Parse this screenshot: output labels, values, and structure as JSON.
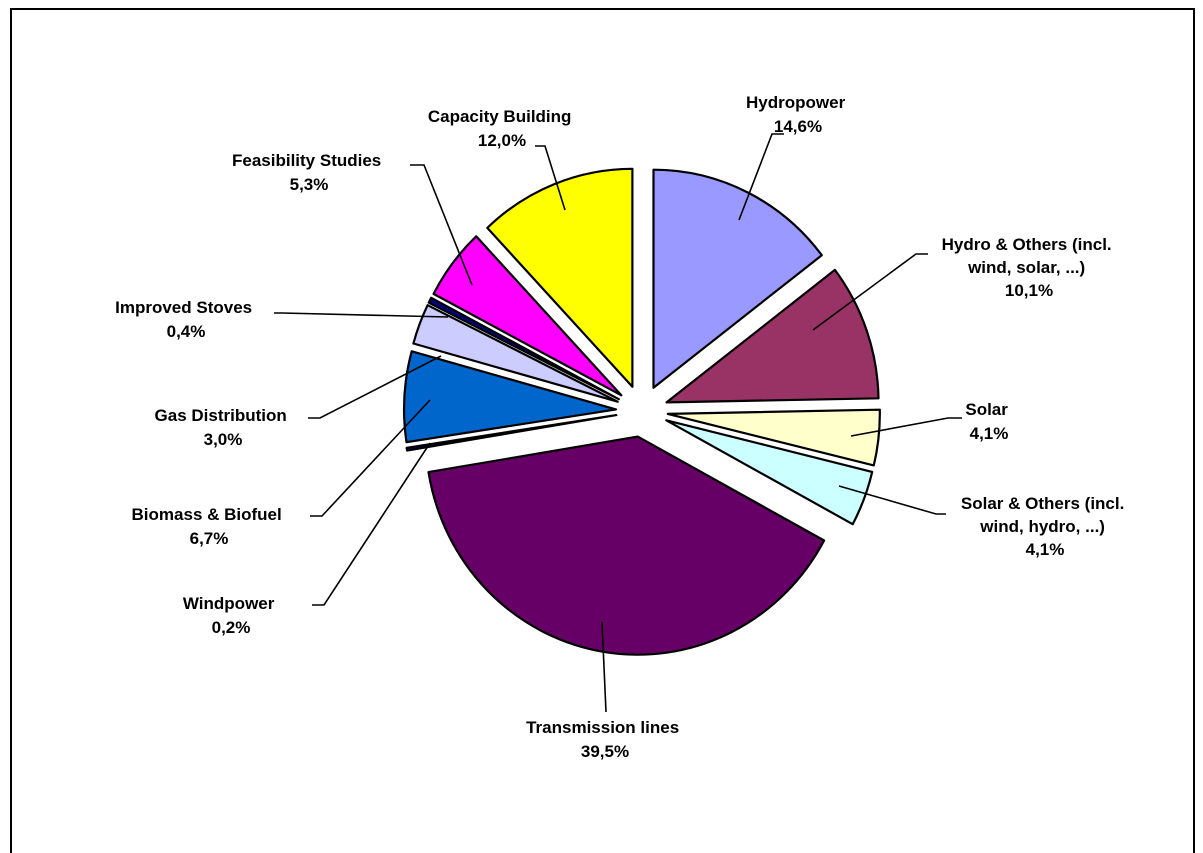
{
  "chart_data": {
    "type": "pie",
    "exploded": true,
    "legend": "none",
    "slices": [
      {
        "name": "Hydropower",
        "value": 14.6,
        "label": "14,6%",
        "color": "#9999ff"
      },
      {
        "name": "Hydro & Others (incl. wind, solar, ...)",
        "value": 10.1,
        "label": "10,1%",
        "color": "#993366"
      },
      {
        "name": "Solar",
        "value": 4.1,
        "label": "4,1%",
        "color": "#ffffcc"
      },
      {
        "name": "Solar & Others (incl. wind, hydro, ...)",
        "value": 4.1,
        "label": "4,1%",
        "color": "#ccffff"
      },
      {
        "name": "Transmission lines",
        "value": 39.5,
        "label": "39,5%",
        "color": "#660066"
      },
      {
        "name": "Windpower",
        "value": 0.2,
        "label": "0,2%",
        "color": "#000080"
      },
      {
        "name": "Biomass & Biofuel",
        "value": 6.7,
        "label": "6,7%",
        "color": "#0066cc"
      },
      {
        "name": "Gas Distribution",
        "value": 3.0,
        "label": "3,0%",
        "color": "#ccccff"
      },
      {
        "name": "Improved Stoves",
        "value": 0.4,
        "label": "0,4%",
        "color": "#000080"
      },
      {
        "name": "Feasibility Studies",
        "value": 5.3,
        "label": "5,3%",
        "color": "#ff00ff"
      },
      {
        "name": "Capacity Building",
        "value": 12.0,
        "label": "12,0%",
        "color": "#ffff00"
      }
    ],
    "labels": {
      "hydropower": {
        "line1": "Hydropower",
        "line2": "14,6%"
      },
      "hydro_others": {
        "line1": "Hydro & Others (incl.",
        "line2": "wind, solar, ...)",
        "line3": "10,1%"
      },
      "solar": {
        "line1": "Solar",
        "line2": "4,1%"
      },
      "solar_others": {
        "line1": "Solar & Others (incl.",
        "line2": "wind, hydro, ...)",
        "line3": "4,1%"
      },
      "transmission": {
        "line1": "Transmission lines",
        "line2": "39,5%"
      },
      "windpower": {
        "line1": "Windpower",
        "line2": "0,2%"
      },
      "biomass": {
        "line1": "Biomass & Biofuel",
        "line2": "6,7%"
      },
      "gas": {
        "line1": "Gas Distribution",
        "line2": "3,0%"
      },
      "stoves": {
        "line1": "Improved Stoves",
        "line2": "0,4%"
      },
      "feasibility": {
        "line1": "Feasibility Studies",
        "line2": "5,3%"
      },
      "capacity": {
        "line1": "Capacity Building",
        "line2": "12,0%"
      }
    }
  }
}
